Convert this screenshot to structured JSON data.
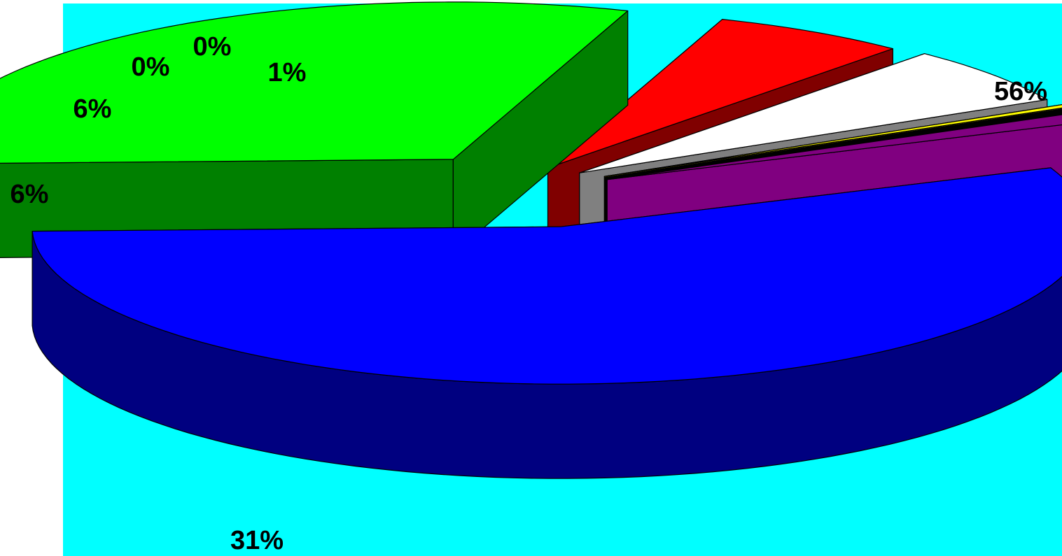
{
  "chart_data": {
    "type": "pie",
    "three_d": true,
    "exploded": true,
    "background_color": "#00FFFF",
    "legend": "none",
    "title": "",
    "values": [
      56,
      31,
      6,
      6,
      0,
      0,
      1
    ],
    "labels": [
      "56%",
      "31%",
      "6%",
      "6%",
      "0%",
      "0%",
      "1%"
    ],
    "slice_colors": [
      {
        "top": "#0000FF",
        "side": "#000080"
      },
      {
        "top": "#00FF00",
        "side": "#008000"
      },
      {
        "top": "#FF0000",
        "side": "#800000"
      },
      {
        "top": "#FFFFFF",
        "side": "#808080"
      },
      {
        "top": "#FFFF00",
        "side": "#808000"
      },
      {
        "top": "#000000",
        "side": "#000000"
      },
      {
        "top": "#800080",
        "side": "#800080"
      }
    ]
  }
}
